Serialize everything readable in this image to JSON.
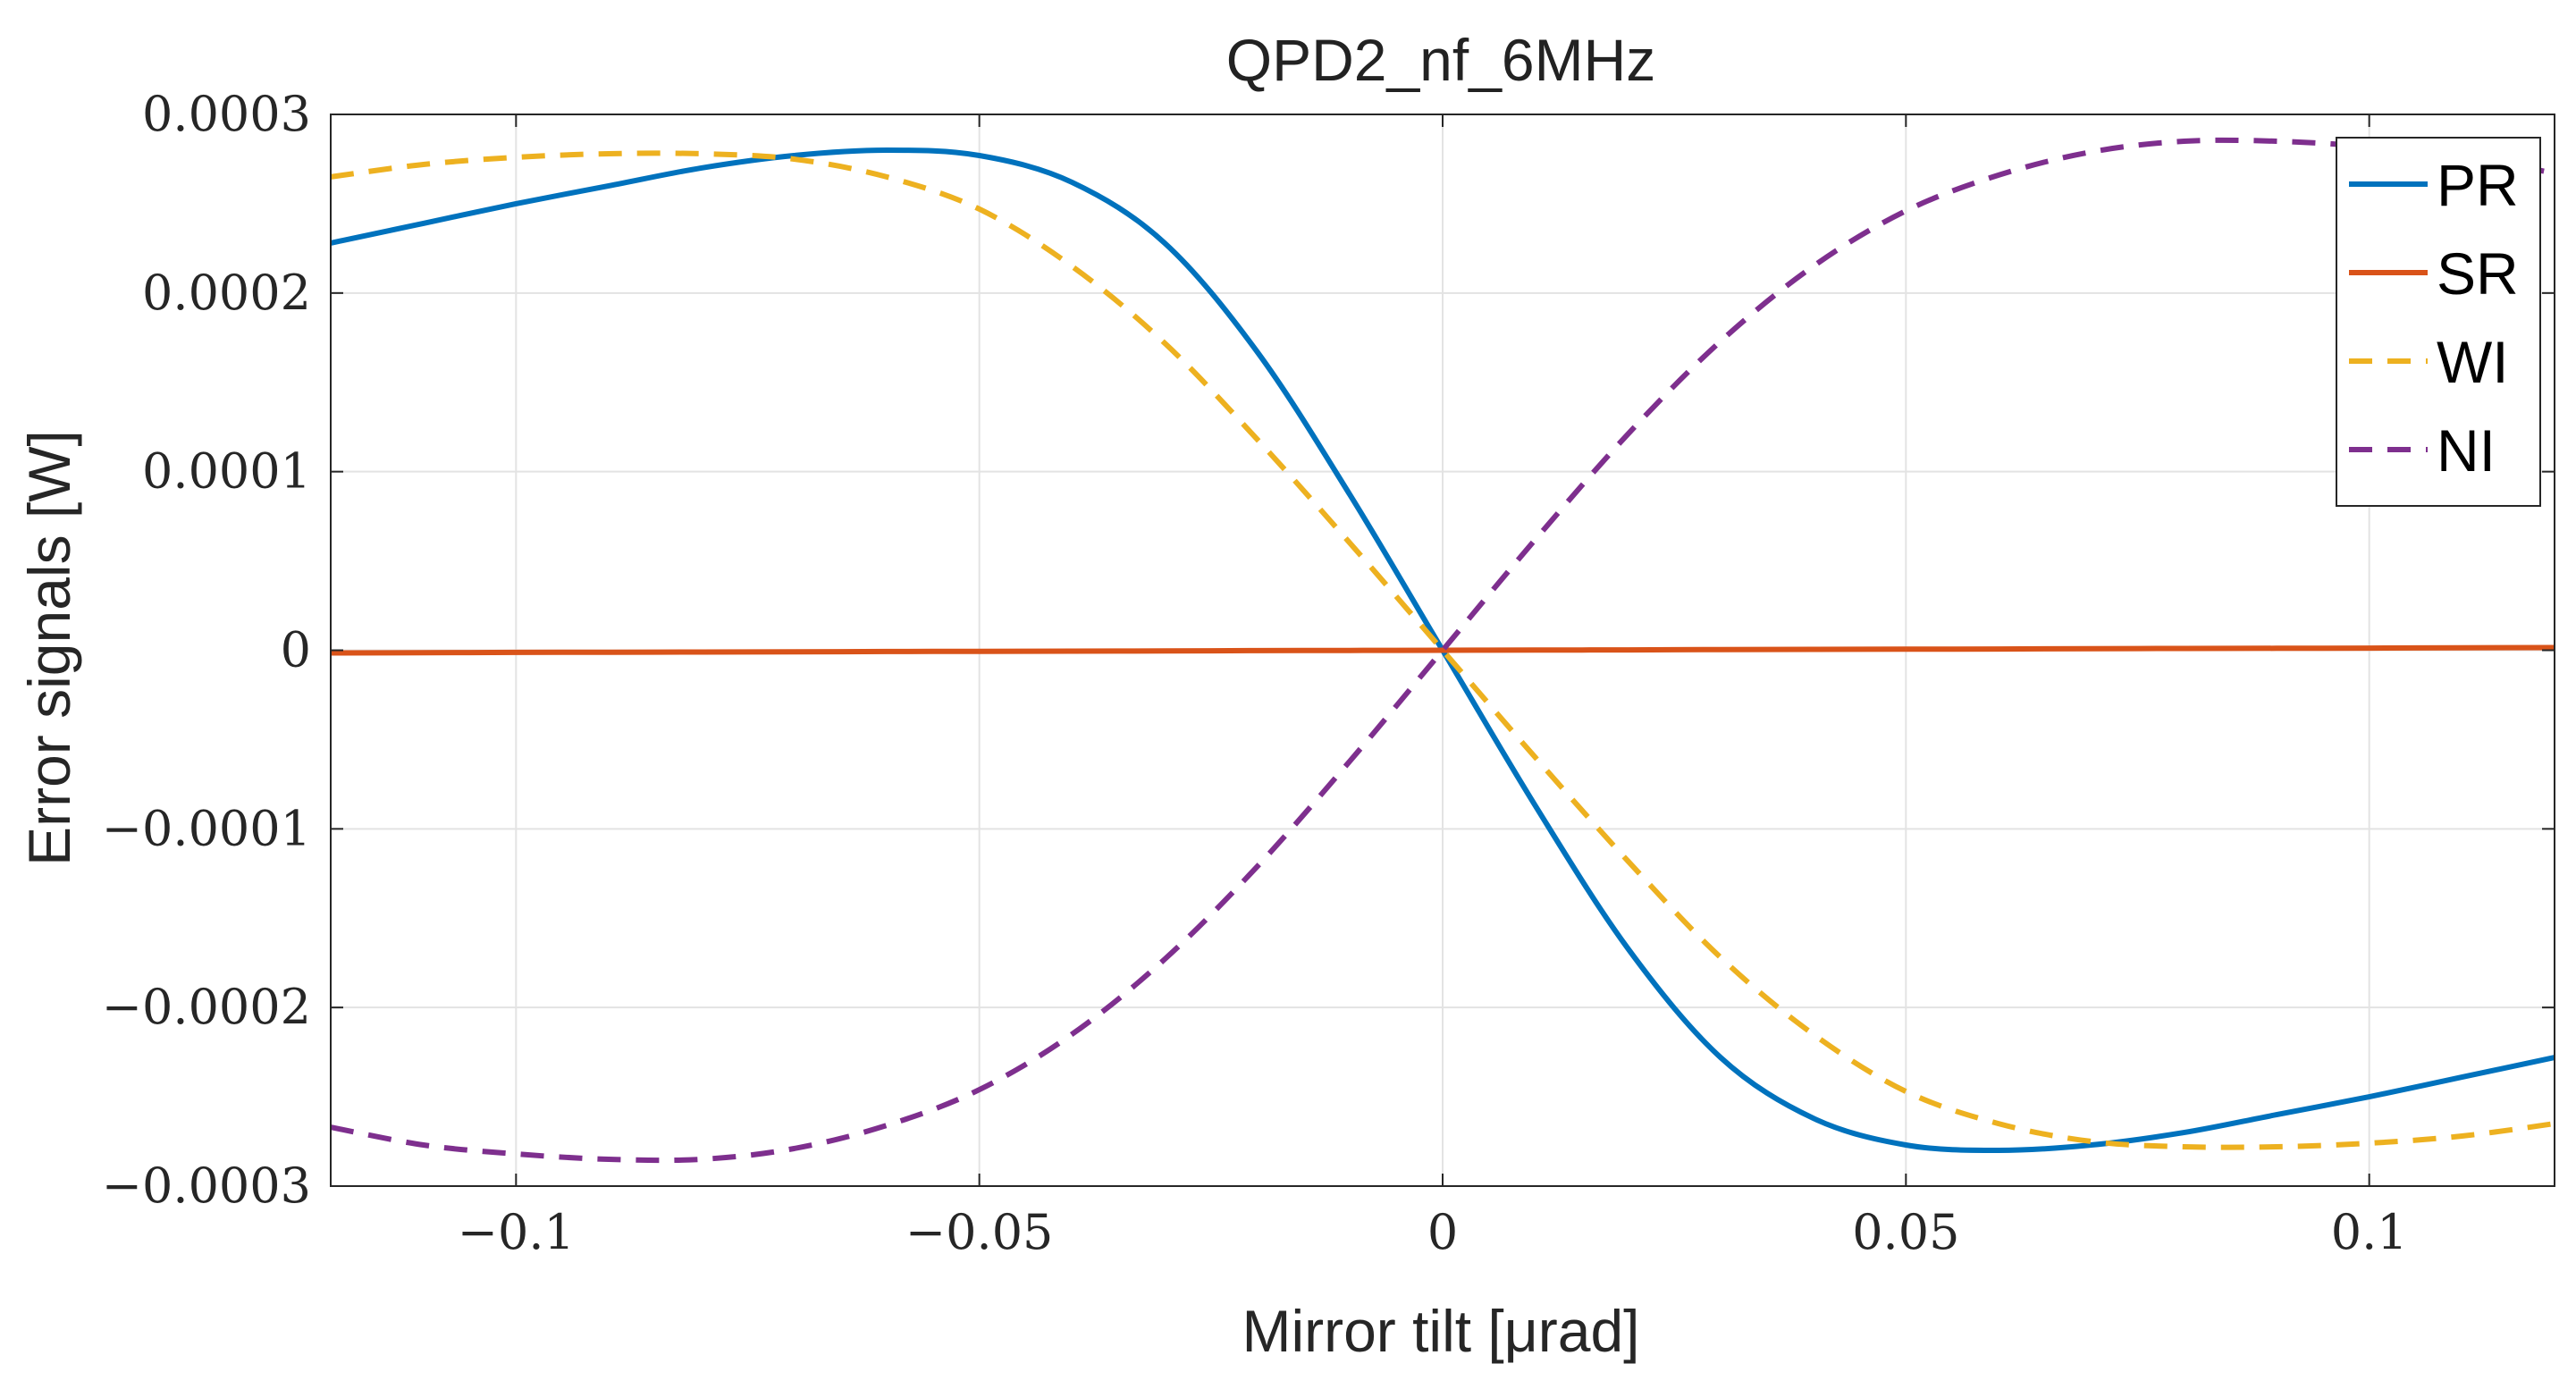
{
  "chart_data": {
    "type": "line",
    "title": "QPD2_nf_6MHz",
    "xlabel": "Mirror tilt [μrad]",
    "ylabel": "Error signals [W]",
    "xlim": [
      -0.12,
      0.12
    ],
    "ylim": [
      -0.0003,
      0.0003
    ],
    "xticks": [
      -0.1,
      -0.05,
      0,
      0.05,
      0.1
    ],
    "xtick_labels": [
      "−0.1",
      "−0.05",
      "0",
      "0.05",
      "0.1"
    ],
    "yticks": [
      0.0003,
      0.0002,
      0.0001,
      0,
      -0.0001,
      -0.0002,
      -0.0003
    ],
    "ytick_labels": [
      "0.0003",
      "0.0002",
      "0.0001",
      "0",
      "−0.0001",
      "−0.0002",
      "−0.0003"
    ],
    "grid": true,
    "legend_position": "top-right",
    "x": [
      -0.12,
      -0.11,
      -0.1,
      -0.09,
      -0.08,
      -0.07,
      -0.06,
      -0.05,
      -0.04,
      -0.03,
      -0.02,
      -0.01,
      0,
      0.01,
      0.02,
      0.03,
      0.04,
      0.05,
      0.06,
      0.07,
      0.08,
      0.09,
      0.1,
      0.11,
      0.12
    ],
    "series": [
      {
        "name": "PR",
        "color": "#0072BD",
        "style": "solid",
        "values": [
          0.000228,
          0.000239,
          0.00025,
          0.00026,
          0.00027,
          0.000277,
          0.00028,
          0.000277,
          0.000262,
          0.000228,
          0.000167,
          8.7e-05,
          0,
          -8.7e-05,
          -0.000167,
          -0.000228,
          -0.000262,
          -0.000277,
          -0.00028,
          -0.000277,
          -0.00027,
          -0.00026,
          -0.00025,
          -0.000239,
          -0.000228
        ]
      },
      {
        "name": "SR",
        "color": "#D95319",
        "style": "solid",
        "values": [
          -1.5e-06,
          -1.4e-06,
          -1.2e-06,
          -1.1e-06,
          -1e-06,
          -9e-07,
          -7e-07,
          -6e-07,
          -5e-07,
          -4e-07,
          -2e-07,
          -1e-07,
          0,
          1e-07,
          2e-07,
          4e-07,
          5e-07,
          6e-07,
          7e-07,
          9e-07,
          1e-06,
          1.1e-06,
          1.2e-06,
          1.4e-06,
          1.5e-06
        ]
      },
      {
        "name": "WI",
        "color": "#EDB120",
        "style": "dashed",
        "values": [
          0.000265,
          0.000272,
          0.000276,
          0.000278,
          0.000278,
          0.000275,
          0.000265,
          0.000247,
          0.000215,
          0.000172,
          0.000118,
          6e-05,
          0,
          -6e-05,
          -0.000118,
          -0.000172,
          -0.000215,
          -0.000247,
          -0.000265,
          -0.000275,
          -0.000278,
          -0.000278,
          -0.000276,
          -0.000272,
          -0.000265
        ]
      },
      {
        "name": "NI",
        "color": "#7E2F8E",
        "style": "dashed",
        "values": [
          -0.000267,
          -0.000277,
          -0.000282,
          -0.000285,
          -0.000285,
          -0.000279,
          -0.000266,
          -0.000246,
          -0.000215,
          -0.000173,
          -0.000121,
          -6.2e-05,
          0,
          6.2e-05,
          0.000121,
          0.000173,
          0.000215,
          0.000246,
          0.000266,
          0.000279,
          0.000285,
          0.000285,
          0.000282,
          0.000277,
          0.000267
        ]
      }
    ]
  }
}
